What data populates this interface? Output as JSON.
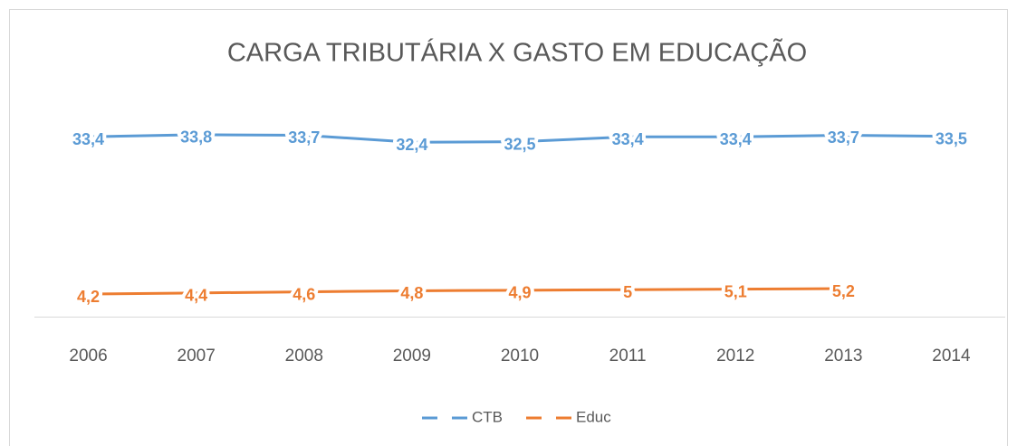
{
  "chart_data": {
    "type": "line",
    "title": "CARGA TRIBUTÁRIA X GASTO EM EDUCAÇÃO",
    "categories": [
      "2006",
      "2007",
      "2008",
      "2009",
      "2010",
      "2011",
      "2012",
      "2013",
      "2014"
    ],
    "series": [
      {
        "name": "CTB",
        "color": "#5b9bd5",
        "values": [
          33.4,
          33.8,
          33.7,
          32.4,
          32.5,
          33.4,
          33.4,
          33.7,
          33.5
        ],
        "value_labels": [
          "33,4",
          "33,8",
          "33,7",
          "32,4",
          "32,5",
          "33,4",
          "33,4",
          "33,7",
          "33,5"
        ]
      },
      {
        "name": "Educ",
        "color": "#ed7d31",
        "values": [
          4.2,
          4.4,
          4.6,
          4.8,
          4.9,
          5,
          5.1,
          5.2,
          null
        ],
        "value_labels": [
          "4,2",
          "4,4",
          "4,6",
          "4,8",
          "4,9",
          "5",
          "5,1",
          "5,2",
          null
        ]
      }
    ],
    "ylim": [
      0,
      40
    ],
    "legend": "bottom"
  }
}
